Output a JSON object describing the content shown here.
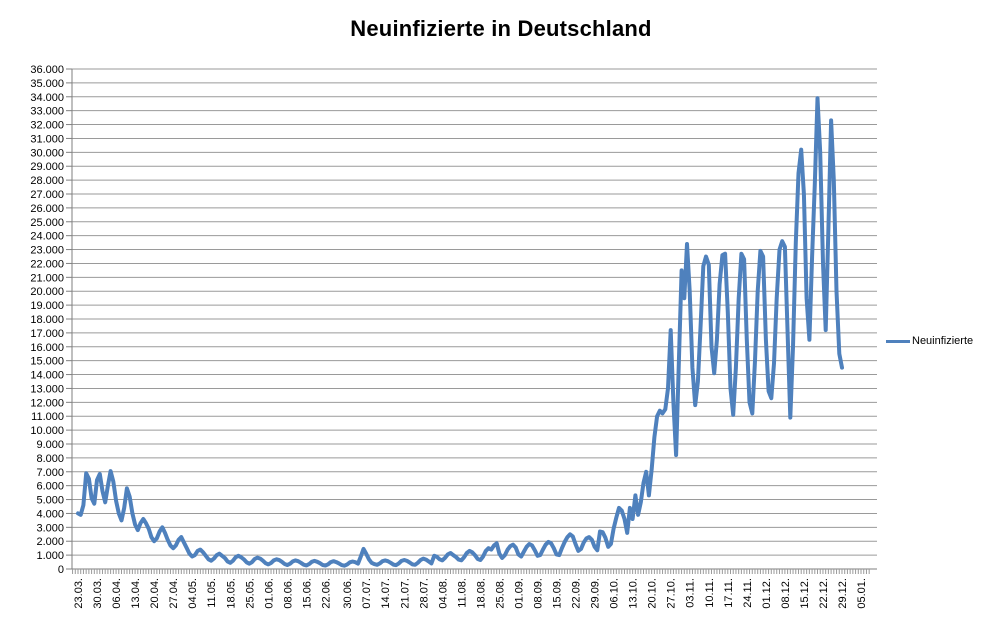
{
  "chart_data": {
    "type": "line",
    "title": "Neuinfizierte in Deutschland",
    "legend": {
      "position": "right-middle",
      "entries": [
        "Neuinfizierte"
      ]
    },
    "grid": "horizontal-major",
    "background": "#FFFFFF",
    "colors": {
      "line": "#4F81BD",
      "gridline": "#9A9A9A",
      "axis": "#7F7F7F",
      "text": "#000000"
    },
    "ylim": [
      0,
      36000
    ],
    "y_tick_step": 1000,
    "y_tick_labels": [
      "0",
      "1.000",
      "2.000",
      "3.000",
      "4.000",
      "5.000",
      "6.000",
      "7.000",
      "8.000",
      "9.000",
      "10.000",
      "11.000",
      "12.000",
      "13.000",
      "14.000",
      "15.000",
      "16.000",
      "17.000",
      "18.000",
      "19.000",
      "20.000",
      "21.000",
      "22.000",
      "23.000",
      "24.000",
      "25.000",
      "26.000",
      "27.000",
      "28.000",
      "29.000",
      "30.000",
      "31.000",
      "32.000",
      "33.000",
      "34.000",
      "35.000",
      "36.000"
    ],
    "x_tick_labels": [
      {
        "label": "23.03.",
        "day": 0
      },
      {
        "label": "30.03.",
        "day": 7
      },
      {
        "label": "06.04.",
        "day": 14
      },
      {
        "label": "13.04.",
        "day": 21
      },
      {
        "label": "20.04.",
        "day": 28
      },
      {
        "label": "27.04.",
        "day": 35
      },
      {
        "label": "04.05.",
        "day": 42
      },
      {
        "label": "11.05.",
        "day": 49
      },
      {
        "label": "18.05.",
        "day": 56
      },
      {
        "label": "25.05.",
        "day": 63
      },
      {
        "label": "01.06.",
        "day": 70
      },
      {
        "label": "08.06.",
        "day": 77
      },
      {
        "label": "15.06.",
        "day": 84
      },
      {
        "label": "22.06.",
        "day": 91
      },
      {
        "label": "30.06.",
        "day": 99
      },
      {
        "label": "07.07.",
        "day": 106
      },
      {
        "label": "14.07.",
        "day": 113
      },
      {
        "label": "21.07.",
        "day": 120
      },
      {
        "label": "28.07.",
        "day": 127
      },
      {
        "label": "04.08.",
        "day": 134
      },
      {
        "label": "11.08.",
        "day": 141
      },
      {
        "label": "18.08.",
        "day": 148
      },
      {
        "label": "25.08.",
        "day": 155
      },
      {
        "label": "01.09.",
        "day": 162
      },
      {
        "label": "08.09.",
        "day": 169
      },
      {
        "label": "15.09.",
        "day": 176
      },
      {
        "label": "22.09.",
        "day": 183
      },
      {
        "label": "29.09.",
        "day": 190
      },
      {
        "label": "06.10.",
        "day": 197
      },
      {
        "label": "13.10.",
        "day": 204
      },
      {
        "label": "20.10.",
        "day": 211
      },
      {
        "label": "27.10.",
        "day": 218
      },
      {
        "label": "03.11.",
        "day": 225
      },
      {
        "label": "10.11.",
        "day": 232
      },
      {
        "label": "17.11.",
        "day": 239
      },
      {
        "label": "24.11.",
        "day": 246
      },
      {
        "label": "01.12.",
        "day": 253
      },
      {
        "label": "08.12.",
        "day": 260
      },
      {
        "label": "15.12.",
        "day": 267
      },
      {
        "label": "22.12.",
        "day": 274
      },
      {
        "label": "29.12.",
        "day": 281
      },
      {
        "label": "05.01.",
        "day": 288
      }
    ],
    "series": [
      {
        "name": "Neuinfizierte",
        "color": "#4F81BD",
        "frequency": "daily",
        "first_point_label": "23.03.",
        "last_point_label": "29.12.",
        "values": [
          4000,
          3900,
          4600,
          6900,
          6500,
          5100,
          4700,
          6400,
          6850,
          5600,
          4800,
          6000,
          7050,
          6300,
          4900,
          4000,
          3500,
          4400,
          5800,
          5200,
          4000,
          3200,
          2800,
          3300,
          3600,
          3300,
          2900,
          2300,
          2000,
          2200,
          2700,
          3000,
          2600,
          2100,
          1700,
          1500,
          1700,
          2100,
          2300,
          1900,
          1500,
          1100,
          900,
          1000,
          1300,
          1400,
          1200,
          950,
          700,
          600,
          750,
          1000,
          1100,
          950,
          800,
          550,
          450,
          600,
          850,
          950,
          850,
          700,
          480,
          380,
          500,
          720,
          820,
          750,
          600,
          420,
          330,
          430,
          620,
          700,
          640,
          520,
          360,
          290,
          380,
          550,
          620,
          560,
          450,
          310,
          260,
          350,
          520,
          580,
          520,
          420,
          290,
          250,
          340,
          500,
          560,
          500,
          400,
          280,
          240,
          330,
          480,
          540,
          490,
          390,
          900,
          1450,
          1100,
          700,
          450,
          350,
          300,
          400,
          560,
          620,
          560,
          450,
          320,
          280,
          400,
          580,
          650,
          580,
          470,
          330,
          300,
          450,
          650,
          750,
          680,
          550,
          400,
          950,
          880,
          700,
          620,
          800,
          1050,
          1150,
          1000,
          870,
          680,
          630,
          850,
          1150,
          1300,
          1200,
          1000,
          720,
          650,
          900,
          1300,
          1500,
          1400,
          1700,
          1850,
          1100,
          800,
          1000,
          1400,
          1650,
          1750,
          1550,
          1050,
          900,
          1250,
          1600,
          1800,
          1700,
          1350,
          950,
          1000,
          1400,
          1750,
          1950,
          1850,
          1500,
          1050,
          1000,
          1500,
          1950,
          2300,
          2500,
          2350,
          1800,
          1300,
          1450,
          1900,
          2200,
          2300,
          2100,
          1600,
          1350,
          2700,
          2650,
          2250,
          1600,
          1800,
          2900,
          3700,
          4400,
          4200,
          3600,
          2600,
          4400,
          3600,
          5300,
          3900,
          4800,
          6200,
          7000,
          5300,
          7200,
          9500,
          11000,
          11400,
          11200,
          11500,
          13000,
          17200,
          12000,
          8200,
          15000,
          21500,
          19500,
          23400,
          20000,
          14500,
          11800,
          13500,
          17500,
          21800,
          22500,
          21900,
          16000,
          14100,
          16500,
          20500,
          22600,
          22700,
          18500,
          13000,
          11100,
          14500,
          19500,
          22700,
          22300,
          16500,
          12000,
          11200,
          15000,
          20000,
          22900,
          22500,
          16500,
          12800,
          12300,
          14800,
          19500,
          23000,
          23600,
          23200,
          17000,
          10900,
          16000,
          23500,
          28500,
          30200,
          27000,
          19500,
          16500,
          22500,
          27700,
          33900,
          30000,
          22000,
          17200,
          24500,
          32300,
          28000,
          20000,
          15500,
          14500
        ]
      }
    ]
  }
}
